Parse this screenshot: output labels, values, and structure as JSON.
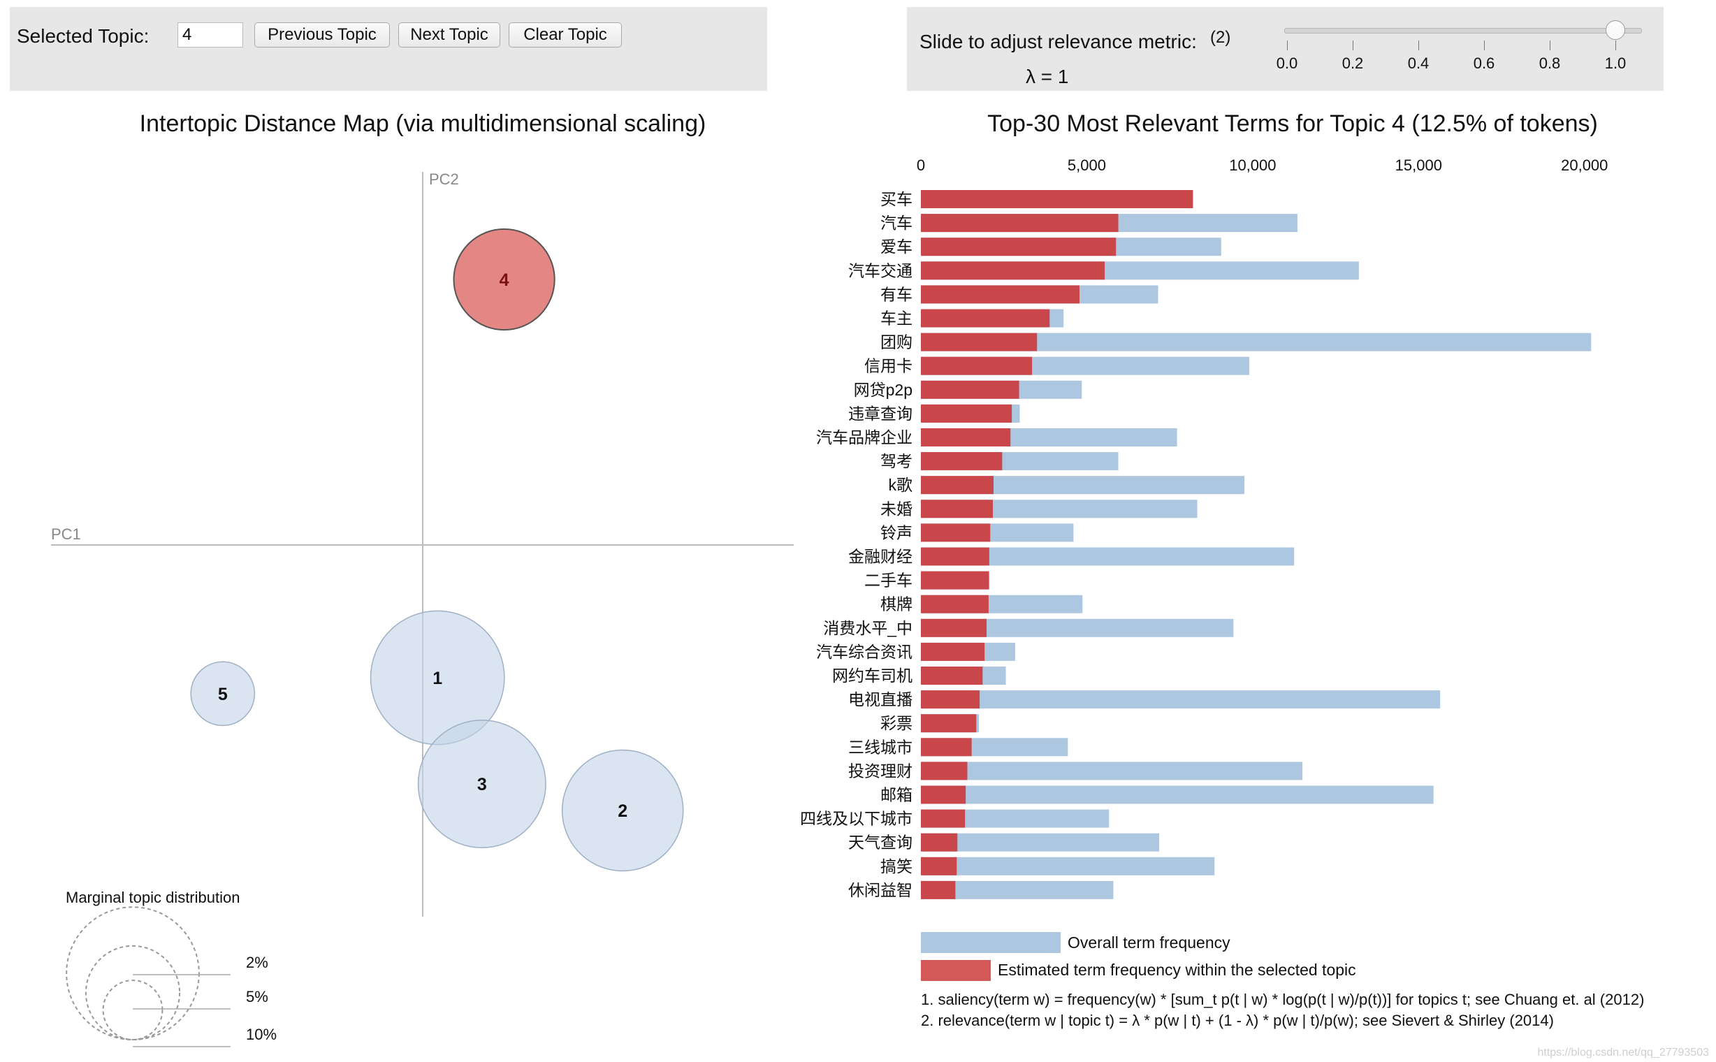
{
  "controls": {
    "selected_topic_label": "Selected Topic:",
    "selected_topic_value": "4",
    "prev_label": "Previous Topic",
    "next_label": "Next Topic",
    "clear_label": "Clear Topic",
    "slider_label": "Slide to adjust relevance metric:",
    "slider_note": "(2)",
    "lambda_label": "λ = 1",
    "lambda_value": 1,
    "slider_ticks": [
      "0.0",
      "0.2",
      "0.4",
      "0.6",
      "0.8",
      "1.0"
    ]
  },
  "colors": {
    "selected": "#d9534f",
    "background_bar": "#aec7e0",
    "estimated_bar": "#c9474a",
    "bubble": "#c3d4e7"
  },
  "chart_data": [
    {
      "type": "scatter",
      "title": "Intertopic Distance Map (via multidimensional scaling)",
      "xlabel": "PC1",
      "ylabel": "PC2",
      "selected_topic": 4,
      "topics": [
        {
          "id": "1",
          "pc1": 0.02,
          "pc2": -0.25,
          "size_pct": 22
        },
        {
          "id": "2",
          "pc1": 0.27,
          "pc2": -0.5,
          "size_pct": 18
        },
        {
          "id": "3",
          "pc1": 0.08,
          "pc2": -0.45,
          "size_pct": 20
        },
        {
          "id": "4",
          "pc1": 0.11,
          "pc2": 0.5,
          "size_pct": 12.5
        },
        {
          "id": "5",
          "pc1": -0.27,
          "pc2": -0.28,
          "size_pct": 5
        }
      ],
      "legend": {
        "title": "Marginal topic distribution",
        "items": [
          {
            "label": "2%",
            "value": 2
          },
          {
            "label": "5%",
            "value": 5
          },
          {
            "label": "10%",
            "value": 10
          }
        ]
      }
    },
    {
      "type": "bar",
      "orientation": "horizontal",
      "title": "Top-30 Most Relevant Terms for Topic 4 (12.5% of tokens)",
      "xlim": [
        0,
        21000
      ],
      "xticks": [
        0,
        5000,
        10000,
        15000,
        20000
      ],
      "xtick_labels": [
        "0",
        "5,000",
        "10,000",
        "15,000",
        "20,000"
      ],
      "categories": [
        "买车",
        "汽车",
        "爱车",
        "汽车交通",
        "有车",
        "车主",
        "团购",
        "信用卡",
        "网贷p2p",
        "违章查询",
        "汽车品牌企业",
        "驾考",
        "k歌",
        "未婚",
        "铃声",
        "金融财经",
        "二手车",
        "棋牌",
        "消费水平_中",
        "汽车综合资讯",
        "网约车司机",
        "电视直播",
        "彩票",
        "三线城市",
        "投资理财",
        "邮箱",
        "四线及以下城市",
        "天气查询",
        "搞笑",
        "休闲益智"
      ],
      "series": [
        {
          "name": "Overall term frequency",
          "values": [
            8200,
            11350,
            9050,
            13200,
            7150,
            4300,
            20200,
            9900,
            4850,
            2980,
            7720,
            5950,
            9750,
            8330,
            4600,
            11250,
            2070,
            4870,
            9420,
            2840,
            2560,
            15650,
            1750,
            4430,
            11500,
            15450,
            5670,
            7180,
            8850,
            5800
          ]
        },
        {
          "name": "Estimated term frequency within the selected topic",
          "values": [
            8200,
            5950,
            5880,
            5540,
            4780,
            3880,
            3500,
            3350,
            2960,
            2740,
            2700,
            2450,
            2190,
            2170,
            2090,
            2060,
            2050,
            2040,
            1980,
            1920,
            1860,
            1770,
            1670,
            1530,
            1400,
            1350,
            1330,
            1100,
            1080,
            1040
          ]
        }
      ],
      "legend": [
        "Overall term frequency",
        "Estimated term frequency within the selected topic"
      ]
    }
  ],
  "footnotes": [
    "1. saliency(term w) = frequency(w) * [sum_t p(t | w) * log(p(t | w)/p(t))] for topics t; see Chuang et. al (2012)",
    "2. relevance(term w | topic t) = λ * p(w | t) + (1 - λ) * p(w | t)/p(w); see Sievert & Shirley (2014)"
  ],
  "watermark": "https://blog.csdn.net/qq_27793503"
}
